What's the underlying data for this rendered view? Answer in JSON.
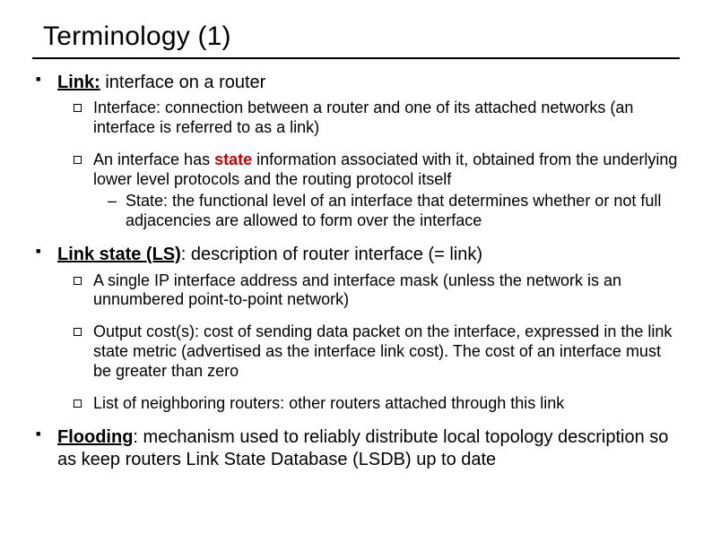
{
  "title": "Terminology (1)",
  "colors": {
    "background": "#ffffff",
    "text": "#000000",
    "rule": "#000000",
    "highlight": "#cc0000"
  },
  "typography": {
    "family": "Arial, Helvetica, sans-serif",
    "title_size_pt": 24,
    "level1_size_pt": 16,
    "level2_size_pt": 14,
    "level3_size_pt": 14
  },
  "bullets": [
    {
      "lead": "Link:",
      "rest": " interface on a router",
      "sub": [
        {
          "text": "Interface: connection between a router and one of its attached networks (an interface is referred to as a link)"
        },
        {
          "prefix": "An interface has ",
          "emph": "state",
          "suffix": " information associated with it, obtained from the underlying lower level protocols and the routing protocol itself",
          "sub": [
            {
              "text": "State: the functional level of an interface that determines whether or not full adjacencies are allowed to form over the interface"
            }
          ]
        }
      ]
    },
    {
      "lead": "Link state (LS)",
      "rest": ": description of router interface (= link)",
      "sub": [
        {
          "text": "A single IP interface address and interface mask (unless the network is an unnumbered point-to-point network)"
        },
        {
          "text": "Output cost(s): cost of sending data packet on the interface, expressed in the link state metric (advertised as the interface link cost). The cost of an interface must be greater than zero"
        },
        {
          "text": "List of neighboring routers: other routers attached through this link"
        }
      ]
    },
    {
      "lead": "Flooding",
      "rest": ": mechanism used to reliably distribute local topology description so as keep routers Link State Database (LSDB) up to date"
    }
  ]
}
